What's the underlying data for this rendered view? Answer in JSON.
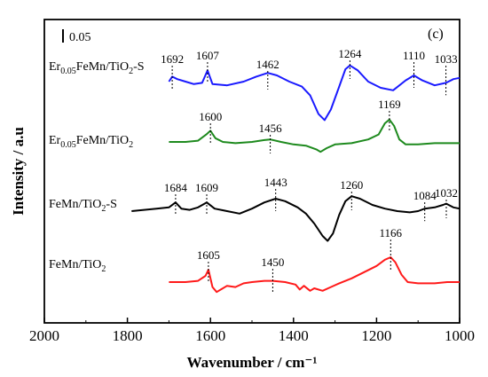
{
  "chart_data": {
    "type": "line",
    "panel_label": "(c)",
    "xlabel": "Wavenumber / cm⁻¹",
    "ylabel": "Intensity / a.u",
    "xlim": [
      2000,
      1000
    ],
    "x_ticks": [
      "2000",
      "1800",
      "1600",
      "1400",
      "1200",
      "1000"
    ],
    "x_tick_values": [
      2000,
      1800,
      1600,
      1400,
      1200,
      1000
    ],
    "scale_bar_label": "0.05",
    "grid": false,
    "series": [
      {
        "name": "Er0.05FeMn/TiO2-S",
        "label_main": "Er",
        "label_sub1": "0.05",
        "label_mid": "FeMn/TiO",
        "label_sub2": "2",
        "label_tail": "-S",
        "color": "#1a1aff",
        "points": [
          [
            1700,
            0.0
          ],
          [
            1692,
            0.008
          ],
          [
            1680,
            0.004
          ],
          [
            1660,
            0.0
          ],
          [
            1640,
            -0.004
          ],
          [
            1620,
            -0.002
          ],
          [
            1607,
            0.018
          ],
          [
            1595,
            -0.004
          ],
          [
            1560,
            -0.006
          ],
          [
            1520,
            0.0
          ],
          [
            1490,
            0.008
          ],
          [
            1462,
            0.014
          ],
          [
            1440,
            0.01
          ],
          [
            1410,
            0.0
          ],
          [
            1380,
            -0.008
          ],
          [
            1360,
            -0.022
          ],
          [
            1340,
            -0.052
          ],
          [
            1325,
            -0.062
          ],
          [
            1310,
            -0.045
          ],
          [
            1290,
            -0.008
          ],
          [
            1275,
            0.02
          ],
          [
            1264,
            0.026
          ],
          [
            1245,
            0.018
          ],
          [
            1220,
            0.0
          ],
          [
            1190,
            -0.01
          ],
          [
            1160,
            -0.014
          ],
          [
            1130,
            0.002
          ],
          [
            1110,
            0.01
          ],
          [
            1090,
            0.002
          ],
          [
            1060,
            -0.006
          ],
          [
            1033,
            -0.002
          ],
          [
            1015,
            0.004
          ],
          [
            1000,
            0.006
          ]
        ],
        "peaks": [
          {
            "x": 1692,
            "label": "1692"
          },
          {
            "x": 1607,
            "label": "1607"
          },
          {
            "x": 1462,
            "label": "1462"
          },
          {
            "x": 1264,
            "label": "1264"
          },
          {
            "x": 1110,
            "label": "1110"
          },
          {
            "x": 1033,
            "label": "1033"
          }
        ]
      },
      {
        "name": "Er0.05FeMn/TiO2",
        "label_main": "Er",
        "label_sub1": "0.05",
        "label_mid": "FeMn/TiO",
        "label_sub2": "2",
        "label_tail": "",
        "color": "#1e8a1e",
        "points": [
          [
            1700,
            0.0
          ],
          [
            1660,
            0.0
          ],
          [
            1630,
            0.002
          ],
          [
            1610,
            0.012
          ],
          [
            1600,
            0.018
          ],
          [
            1588,
            0.006
          ],
          [
            1570,
            0.0
          ],
          [
            1540,
            -0.002
          ],
          [
            1500,
            0.0
          ],
          [
            1470,
            0.003
          ],
          [
            1456,
            0.004
          ],
          [
            1430,
            0.0
          ],
          [
            1400,
            -0.004
          ],
          [
            1370,
            -0.006
          ],
          [
            1345,
            -0.012
          ],
          [
            1335,
            -0.016
          ],
          [
            1320,
            -0.01
          ],
          [
            1300,
            -0.004
          ],
          [
            1260,
            -0.002
          ],
          [
            1220,
            0.004
          ],
          [
            1195,
            0.012
          ],
          [
            1180,
            0.03
          ],
          [
            1169,
            0.036
          ],
          [
            1158,
            0.026
          ],
          [
            1145,
            0.004
          ],
          [
            1130,
            -0.004
          ],
          [
            1100,
            -0.004
          ],
          [
            1060,
            -0.002
          ],
          [
            1030,
            -0.002
          ],
          [
            1000,
            -0.002
          ]
        ],
        "peaks": [
          {
            "x": 1600,
            "label": "1600"
          },
          {
            "x": 1456,
            "label": "1456"
          },
          {
            "x": 1169,
            "label": "1169"
          }
        ]
      },
      {
        "name": "FeMn/TiO2-S",
        "label_main": "",
        "label_sub1": "",
        "label_mid": "FeMn/TiO",
        "label_sub2": "2",
        "label_tail": "-S",
        "color": "#000000",
        "points": [
          [
            1790,
            0.0
          ],
          [
            1760,
            0.002
          ],
          [
            1730,
            0.004
          ],
          [
            1700,
            0.006
          ],
          [
            1684,
            0.014
          ],
          [
            1670,
            0.004
          ],
          [
            1650,
            0.002
          ],
          [
            1630,
            0.006
          ],
          [
            1609,
            0.014
          ],
          [
            1590,
            0.004
          ],
          [
            1560,
            0.0
          ],
          [
            1530,
            -0.004
          ],
          [
            1500,
            0.004
          ],
          [
            1470,
            0.014
          ],
          [
            1443,
            0.02
          ],
          [
            1420,
            0.016
          ],
          [
            1390,
            0.006
          ],
          [
            1370,
            -0.004
          ],
          [
            1350,
            -0.02
          ],
          [
            1330,
            -0.04
          ],
          [
            1318,
            -0.048
          ],
          [
            1305,
            -0.036
          ],
          [
            1290,
            -0.006
          ],
          [
            1275,
            0.016
          ],
          [
            1260,
            0.024
          ],
          [
            1240,
            0.02
          ],
          [
            1210,
            0.01
          ],
          [
            1180,
            0.004
          ],
          [
            1150,
            0.0
          ],
          [
            1120,
            -0.002
          ],
          [
            1100,
            0.0
          ],
          [
            1084,
            0.004
          ],
          [
            1060,
            0.006
          ],
          [
            1040,
            0.01
          ],
          [
            1032,
            0.012
          ],
          [
            1015,
            0.006
          ],
          [
            1000,
            0.004
          ]
        ],
        "peaks": [
          {
            "x": 1684,
            "label": "1684"
          },
          {
            "x": 1609,
            "label": "1609"
          },
          {
            "x": 1443,
            "label": "1443"
          },
          {
            "x": 1260,
            "label": "1260"
          },
          {
            "x": 1084,
            "label": "1084"
          },
          {
            "x": 1032,
            "label": "1032"
          }
        ]
      },
      {
        "name": "FeMn/TiO2",
        "label_main": "",
        "label_sub1": "",
        "label_mid": "FeMn/TiO",
        "label_sub2": "2",
        "label_tail": "",
        "color": "#ff1a1a",
        "points": [
          [
            1700,
            0.0
          ],
          [
            1660,
            0.0
          ],
          [
            1630,
            0.002
          ],
          [
            1612,
            0.01
          ],
          [
            1605,
            0.02
          ],
          [
            1595,
            -0.008
          ],
          [
            1585,
            -0.016
          ],
          [
            1575,
            -0.012
          ],
          [
            1560,
            -0.006
          ],
          [
            1540,
            -0.008
          ],
          [
            1520,
            -0.002
          ],
          [
            1500,
            0.0
          ],
          [
            1470,
            0.002
          ],
          [
            1450,
            0.002
          ],
          [
            1420,
            0.0
          ],
          [
            1395,
            -0.004
          ],
          [
            1385,
            -0.012
          ],
          [
            1375,
            -0.006
          ],
          [
            1360,
            -0.014
          ],
          [
            1350,
            -0.01
          ],
          [
            1330,
            -0.014
          ],
          [
            1310,
            -0.008
          ],
          [
            1290,
            -0.002
          ],
          [
            1260,
            0.006
          ],
          [
            1230,
            0.016
          ],
          [
            1200,
            0.026
          ],
          [
            1180,
            0.036
          ],
          [
            1166,
            0.04
          ],
          [
            1155,
            0.032
          ],
          [
            1140,
            0.012
          ],
          [
            1125,
            0.0
          ],
          [
            1100,
            -0.002
          ],
          [
            1060,
            -0.002
          ],
          [
            1030,
            0.0
          ],
          [
            1010,
            0.0
          ],
          [
            1000,
            0.0
          ]
        ],
        "peaks": [
          {
            "x": 1605,
            "label": "1605"
          },
          {
            "x": 1450,
            "label": "1450"
          },
          {
            "x": 1166,
            "label": "1166"
          }
        ]
      }
    ]
  }
}
